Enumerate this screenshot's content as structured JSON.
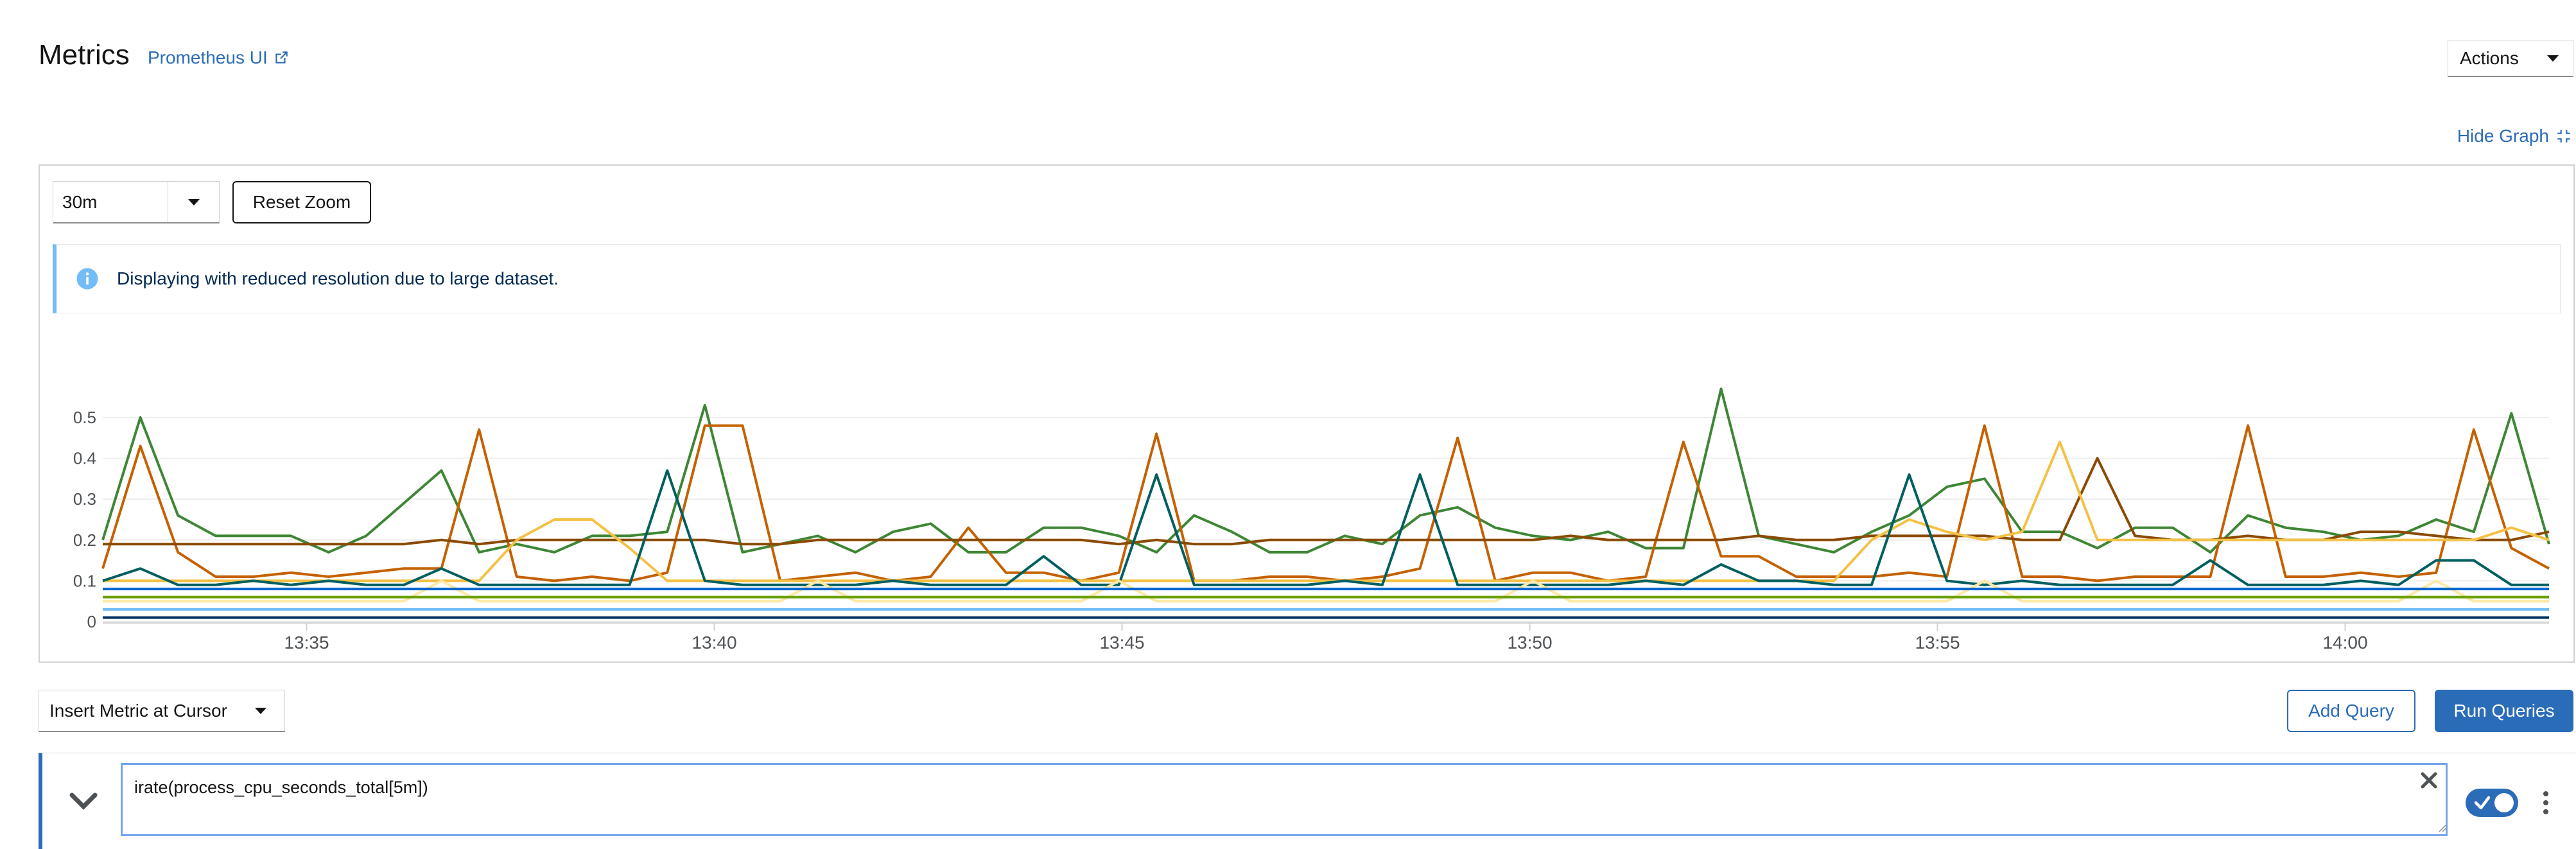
{
  "header": {
    "title": "Metrics",
    "prometheus_link": "Prometheus UI",
    "actions_label": "Actions"
  },
  "graph_controls": {
    "hide_graph_label": "Hide Graph",
    "span_value": "30m",
    "reset_zoom_label": "Reset Zoom",
    "alert_text": "Displaying with reduced resolution due to large dataset."
  },
  "query_toolbar": {
    "insert_metric_label": "Insert Metric at Cursor",
    "add_query_label": "Add Query",
    "run_queries_label": "Run Queries"
  },
  "query": {
    "expression": "irate(process_cpu_seconds_total[5m])",
    "enabled": true
  },
  "colors": {
    "accent": "#2b6cb8",
    "info": "#73bcf7"
  },
  "chart_data": {
    "type": "line",
    "x_ticks": [
      "13:35",
      "13:40",
      "13:45",
      "13:50",
      "13:55",
      "14:00"
    ],
    "y_ticks": [
      "0",
      "0.1",
      "0.2",
      "0.3",
      "0.4",
      "0.5"
    ],
    "xlim": [
      "13:32.5",
      "14:02.5"
    ],
    "ylim": [
      0,
      0.5
    ],
    "grid": true,
    "series": [
      {
        "color": "#3e8635",
        "values": [
          0.2,
          0.5,
          0.26,
          0.21,
          0.21,
          0.21,
          0.17,
          0.21,
          0.29,
          0.37,
          0.17,
          0.19,
          0.17,
          0.21,
          0.21,
          0.22,
          0.53,
          0.17,
          0.19,
          0.21,
          0.17,
          0.22,
          0.24,
          0.17,
          0.17,
          0.23,
          0.23,
          0.21,
          0.17,
          0.26,
          0.22,
          0.17,
          0.17,
          0.21,
          0.19,
          0.26,
          0.28,
          0.23,
          0.21,
          0.2,
          0.22,
          0.18,
          0.18,
          0.57,
          0.21,
          0.19,
          0.17,
          0.22,
          0.26,
          0.33,
          0.35,
          0.22,
          0.22,
          0.18,
          0.23,
          0.23,
          0.17,
          0.26,
          0.23,
          0.22,
          0.2,
          0.21,
          0.25,
          0.22,
          0.51,
          0.19
        ]
      },
      {
        "color": "#c46100",
        "values": [
          0.13,
          0.43,
          0.17,
          0.11,
          0.11,
          0.12,
          0.11,
          0.12,
          0.13,
          0.13,
          0.47,
          0.11,
          0.1,
          0.11,
          0.1,
          0.12,
          0.48,
          0.48,
          0.1,
          0.11,
          0.12,
          0.1,
          0.11,
          0.23,
          0.12,
          0.12,
          0.1,
          0.12,
          0.46,
          0.1,
          0.1,
          0.11,
          0.11,
          0.1,
          0.11,
          0.13,
          0.45,
          0.1,
          0.12,
          0.12,
          0.1,
          0.11,
          0.44,
          0.16,
          0.16,
          0.11,
          0.11,
          0.11,
          0.12,
          0.11,
          0.48,
          0.11,
          0.11,
          0.1,
          0.11,
          0.11,
          0.11,
          0.48,
          0.11,
          0.11,
          0.12,
          0.11,
          0.12,
          0.47,
          0.18,
          0.13
        ]
      },
      {
        "color": "#8a4a00",
        "values": [
          0.19,
          0.19,
          0.19,
          0.19,
          0.19,
          0.19,
          0.19,
          0.19,
          0.19,
          0.2,
          0.19,
          0.2,
          0.2,
          0.2,
          0.2,
          0.2,
          0.2,
          0.19,
          0.19,
          0.2,
          0.2,
          0.2,
          0.2,
          0.2,
          0.2,
          0.2,
          0.2,
          0.19,
          0.2,
          0.19,
          0.19,
          0.2,
          0.2,
          0.2,
          0.2,
          0.2,
          0.2,
          0.2,
          0.2,
          0.21,
          0.2,
          0.2,
          0.2,
          0.2,
          0.21,
          0.2,
          0.2,
          0.21,
          0.21,
          0.21,
          0.21,
          0.2,
          0.2,
          0.4,
          0.21,
          0.2,
          0.2,
          0.21,
          0.2,
          0.2,
          0.22,
          0.22,
          0.21,
          0.2,
          0.2,
          0.22
        ]
      },
      {
        "color": "#f4c145",
        "values": [
          0.1,
          0.1,
          0.1,
          0.1,
          0.1,
          0.1,
          0.1,
          0.1,
          0.1,
          0.1,
          0.1,
          0.2,
          0.25,
          0.25,
          0.18,
          0.1,
          0.1,
          0.1,
          0.1,
          0.1,
          0.1,
          0.1,
          0.1,
          0.1,
          0.1,
          0.1,
          0.1,
          0.1,
          0.1,
          0.1,
          0.1,
          0.1,
          0.1,
          0.1,
          0.1,
          0.1,
          0.1,
          0.1,
          0.1,
          0.1,
          0.1,
          0.1,
          0.1,
          0.1,
          0.1,
          0.1,
          0.1,
          0.2,
          0.25,
          0.22,
          0.2,
          0.22,
          0.44,
          0.2,
          0.2,
          0.2,
          0.2,
          0.2,
          0.2,
          0.2,
          0.2,
          0.2,
          0.2,
          0.2,
          0.23,
          0.2
        ]
      },
      {
        "color": "#005f60",
        "values": [
          0.1,
          0.13,
          0.09,
          0.09,
          0.1,
          0.09,
          0.1,
          0.09,
          0.09,
          0.13,
          0.09,
          0.09,
          0.09,
          0.09,
          0.09,
          0.37,
          0.1,
          0.09,
          0.09,
          0.09,
          0.09,
          0.1,
          0.09,
          0.09,
          0.09,
          0.16,
          0.09,
          0.09,
          0.36,
          0.09,
          0.09,
          0.09,
          0.09,
          0.1,
          0.09,
          0.36,
          0.09,
          0.09,
          0.09,
          0.09,
          0.09,
          0.1,
          0.09,
          0.14,
          0.1,
          0.1,
          0.09,
          0.09,
          0.36,
          0.1,
          0.09,
          0.1,
          0.09,
          0.09,
          0.09,
          0.09,
          0.15,
          0.09,
          0.09,
          0.09,
          0.1,
          0.09,
          0.15,
          0.15,
          0.09,
          0.09
        ]
      },
      {
        "color": "#ffe8a3",
        "values": [
          0.05,
          0.05,
          0.05,
          0.05,
          0.05,
          0.05,
          0.05,
          0.05,
          0.05,
          0.1,
          0.05,
          0.05,
          0.05,
          0.05,
          0.05,
          0.05,
          0.05,
          0.05,
          0.05,
          0.1,
          0.05,
          0.05,
          0.05,
          0.05,
          0.05,
          0.05,
          0.05,
          0.1,
          0.05,
          0.05,
          0.05,
          0.05,
          0.05,
          0.05,
          0.05,
          0.05,
          0.05,
          0.05,
          0.1,
          0.05,
          0.05,
          0.05,
          0.05,
          0.05,
          0.05,
          0.05,
          0.05,
          0.05,
          0.05,
          0.05,
          0.1,
          0.05,
          0.05,
          0.05,
          0.05,
          0.05,
          0.05,
          0.05,
          0.05,
          0.05,
          0.05,
          0.05,
          0.1,
          0.05,
          0.05,
          0.05
        ]
      },
      {
        "color": "#06c",
        "values": [
          0.08,
          0.08,
          0.08,
          0.08,
          0.08,
          0.08,
          0.08,
          0.08,
          0.08,
          0.08,
          0.08,
          0.08,
          0.08,
          0.08,
          0.08,
          0.08,
          0.08,
          0.08,
          0.08,
          0.08,
          0.08,
          0.08,
          0.08,
          0.08,
          0.08,
          0.08,
          0.08,
          0.08,
          0.08,
          0.08,
          0.08,
          0.08,
          0.08,
          0.08,
          0.08,
          0.08,
          0.08,
          0.08,
          0.08,
          0.08,
          0.08,
          0.08,
          0.08,
          0.08,
          0.08,
          0.08,
          0.08,
          0.08,
          0.08,
          0.08,
          0.08,
          0.08,
          0.08,
          0.08,
          0.08,
          0.08,
          0.08,
          0.08,
          0.08,
          0.08,
          0.08,
          0.08,
          0.08,
          0.08,
          0.08,
          0.08
        ]
      },
      {
        "color": "#73bcf7",
        "values": [
          0.03,
          0.03,
          0.03,
          0.03,
          0.03,
          0.03,
          0.03,
          0.03,
          0.03,
          0.03,
          0.03,
          0.03,
          0.03,
          0.03,
          0.03,
          0.03,
          0.03,
          0.03,
          0.03,
          0.03,
          0.03,
          0.03,
          0.03,
          0.03,
          0.03,
          0.03,
          0.03,
          0.03,
          0.03,
          0.03,
          0.03,
          0.03,
          0.03,
          0.03,
          0.03,
          0.03,
          0.03,
          0.03,
          0.03,
          0.03,
          0.03,
          0.03,
          0.03,
          0.03,
          0.03,
          0.03,
          0.03,
          0.03,
          0.03,
          0.03,
          0.03,
          0.03,
          0.03,
          0.03,
          0.03,
          0.03,
          0.03,
          0.03,
          0.03,
          0.03,
          0.03,
          0.03,
          0.03,
          0.03,
          0.03,
          0.03
        ]
      },
      {
        "color": "#002f5d",
        "values": [
          0.01,
          0.01,
          0.01,
          0.01,
          0.01,
          0.01,
          0.01,
          0.01,
          0.01,
          0.01,
          0.01,
          0.01,
          0.01,
          0.01,
          0.01,
          0.01,
          0.01,
          0.01,
          0.01,
          0.01,
          0.01,
          0.01,
          0.01,
          0.01,
          0.01,
          0.01,
          0.01,
          0.01,
          0.01,
          0.01,
          0.01,
          0.01,
          0.01,
          0.01,
          0.01,
          0.01,
          0.01,
          0.01,
          0.01,
          0.01,
          0.01,
          0.01,
          0.01,
          0.01,
          0.01,
          0.01,
          0.01,
          0.01,
          0.01,
          0.01,
          0.01,
          0.01,
          0.01,
          0.01,
          0.01,
          0.01,
          0.01,
          0.01,
          0.01,
          0.01,
          0.01,
          0.01,
          0.01,
          0.01,
          0.01,
          0.01
        ]
      },
      {
        "color": "#6ca100",
        "values": [
          0.06,
          0.06,
          0.06,
          0.06,
          0.06,
          0.06,
          0.06,
          0.06,
          0.06,
          0.06,
          0.06,
          0.06,
          0.06,
          0.06,
          0.06,
          0.06,
          0.06,
          0.06,
          0.06,
          0.06,
          0.06,
          0.06,
          0.06,
          0.06,
          0.06,
          0.06,
          0.06,
          0.06,
          0.06,
          0.06,
          0.06,
          0.06,
          0.06,
          0.06,
          0.06,
          0.06,
          0.06,
          0.06,
          0.06,
          0.06,
          0.06,
          0.06,
          0.06,
          0.06,
          0.06,
          0.06,
          0.06,
          0.06,
          0.06,
          0.06,
          0.06,
          0.06,
          0.06,
          0.06,
          0.06,
          0.06,
          0.06,
          0.06,
          0.06,
          0.06,
          0.06,
          0.06,
          0.06,
          0.06,
          0.06,
          0.06
        ]
      }
    ]
  }
}
